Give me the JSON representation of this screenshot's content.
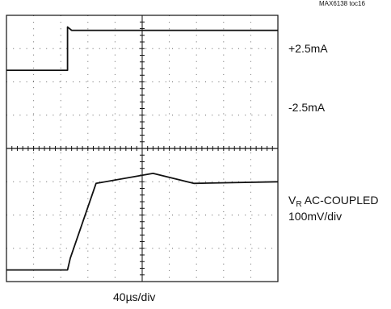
{
  "figure_id": "MAX6138 toc16",
  "labels": {
    "current_high": "+2.5mA",
    "current_low": "-2.5mA",
    "vr_main": "V",
    "vr_sub": "R",
    "vr_rest": " AC-COUPLED",
    "vr_scale": "100mV/div",
    "time_scale": "40µs/div"
  },
  "chart_data": {
    "type": "line",
    "x_divisions": 10,
    "y_divisions": 8,
    "x_unit_per_div": "40µs/div",
    "grid": true,
    "series": [
      {
        "name": "+2.5mA",
        "role": "load current",
        "points_div": [
          [
            0.0,
            6.35
          ],
          [
            2.25,
            6.35
          ],
          [
            2.25,
            7.65
          ],
          [
            2.4,
            7.55
          ],
          [
            10.0,
            7.55
          ]
        ]
      },
      {
        "name": "V_R AC-COUPLED",
        "role": "output voltage",
        "points_div": [
          [
            0.0,
            0.35
          ],
          [
            2.25,
            0.35
          ],
          [
            2.35,
            0.7
          ],
          [
            3.3,
            2.95
          ],
          [
            5.4,
            3.25
          ],
          [
            6.9,
            2.95
          ],
          [
            10.0,
            3.0
          ]
        ]
      }
    ]
  }
}
